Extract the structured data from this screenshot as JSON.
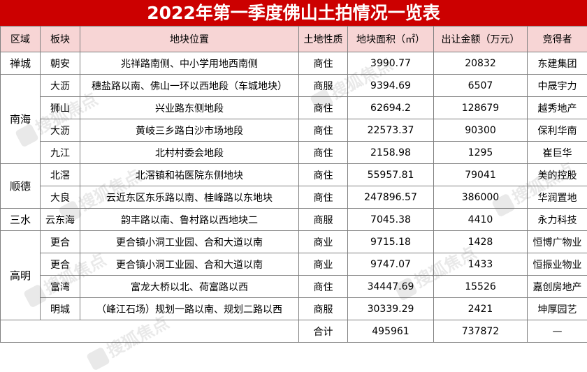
{
  "title": "2022年第一季度佛山土拍情况一览表",
  "headers": [
    "区域",
    "板块",
    "地块位置",
    "土地性质",
    "地块面积（㎡）",
    "出让金额（万元）",
    "竞得者"
  ],
  "watermark": "搜狐焦点",
  "rows": [
    {
      "region": "禅城",
      "block": "朝安",
      "location": "兆祥路南侧、中小学用地西南侧",
      "nature": "商住",
      "area": "3990.77",
      "amount": "20832",
      "winner": "东建集团"
    },
    {
      "region": "南海",
      "block": "大沥",
      "location": "穗盐路以南、佛山一环以西地段（车城地块）",
      "nature": "商服",
      "area": "9394.69",
      "amount": "6507",
      "winner": "中晟宇力"
    },
    {
      "region": "",
      "block": "狮山",
      "location": "兴业路东侧地段",
      "nature": "商住",
      "area": "62694.2",
      "amount": "128679",
      "winner": "越秀地产"
    },
    {
      "region": "",
      "block": "大沥",
      "location": "黄岐三乡路白沙市场地段",
      "nature": "商住",
      "area": "22573.37",
      "amount": "90300",
      "winner": "保利华南"
    },
    {
      "region": "",
      "block": "九江",
      "location": "北村村委会地段",
      "nature": "商住",
      "area": "2158.98",
      "amount": "1295",
      "winner": "崔巨华"
    },
    {
      "region": "顺德",
      "block": "北滘",
      "location": "北滘镇和祐医院东侧地块",
      "nature": "商住",
      "area": "55957.81",
      "amount": "79041",
      "winner": "美的控股"
    },
    {
      "region": "",
      "block": "大良",
      "location": "云近东区东乐路以南、桂峰路以东地块",
      "nature": "商住",
      "area": "247896.57",
      "amount": "386000",
      "winner": "华润置地"
    },
    {
      "region": "三水",
      "block": "云东海",
      "location": "韵丰路以南、鲁村路以西地块二",
      "nature": "商服",
      "area": "7045.38",
      "amount": "4410",
      "winner": "永力科技"
    },
    {
      "region": "高明",
      "block": "更合",
      "location": "更合镇小洞工业园、合和大道以南",
      "nature": "商业",
      "area": "9715.18",
      "amount": "1428",
      "winner": "恒博广物业"
    },
    {
      "region": "",
      "block": "更合",
      "location": "更合镇小洞工业园、合和大道以南",
      "nature": "商业",
      "area": "9747.07",
      "amount": "1433",
      "winner": "恒振业物业"
    },
    {
      "region": "",
      "block": "富湾",
      "location": "富龙大桥以北、荷富路以西",
      "nature": "商住",
      "area": "34447.69",
      "amount": "15526",
      "winner": "嘉创房地产"
    },
    {
      "region": "",
      "block": "明城",
      "location": "（峰江石场）规划一路以南、规划二路以西",
      "nature": "商服",
      "area": "30339.29",
      "amount": "2421",
      "winner": "坤厚园艺"
    }
  ],
  "total": {
    "label": "合计",
    "area": "495961",
    "amount": "737872",
    "winner": "—"
  }
}
